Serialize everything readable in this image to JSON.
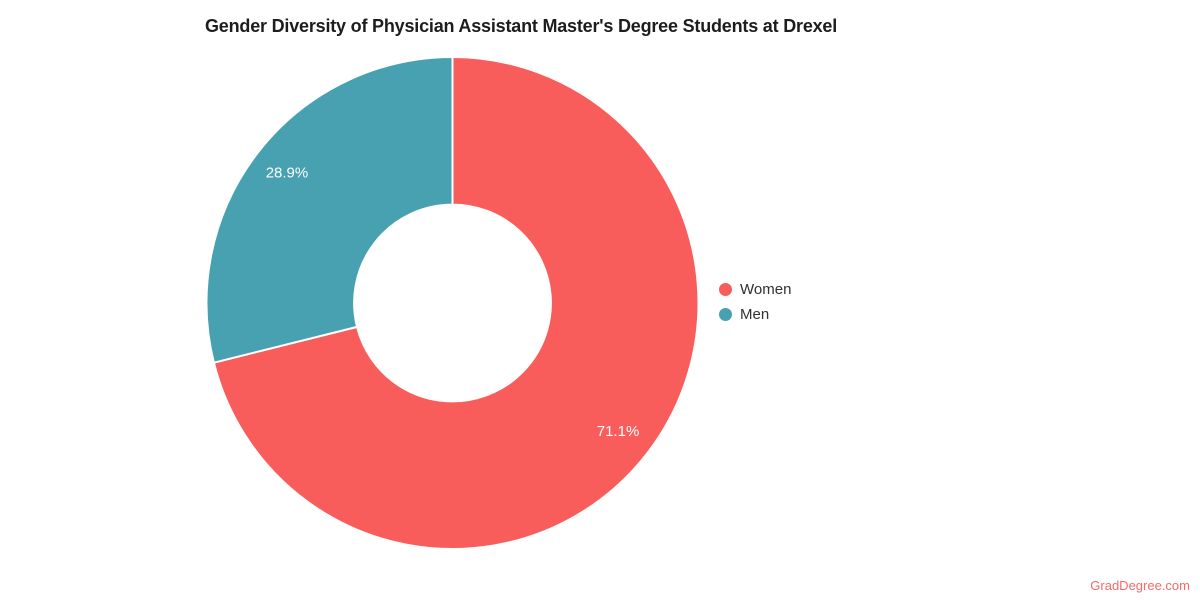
{
  "chart_data": {
    "type": "pie",
    "subtype": "donut",
    "title": "Gender Diversity of Physician Assistant Master's Degree Students at Drexel",
    "start_angle_deg": 0,
    "direction": "clockwise",
    "inner_radius_ratio": 0.4,
    "legend_position": "right",
    "grid": false,
    "slices": [
      {
        "name": "Women",
        "value": 71.1,
        "label": "71.1%",
        "color": "#f95d5b"
      },
      {
        "name": "Men",
        "value": 28.9,
        "label": "28.9%",
        "color": "#47a1b1"
      }
    ],
    "colors": {
      "slice_label_text": "#ffffff",
      "title_text": "#1d1d1d",
      "legend_text": "#303030",
      "watermark_text": "#f56a68",
      "background": "#ffffff",
      "slice_separator": "#ffffff"
    }
  },
  "watermark": {
    "label": "GradDegree.com"
  }
}
